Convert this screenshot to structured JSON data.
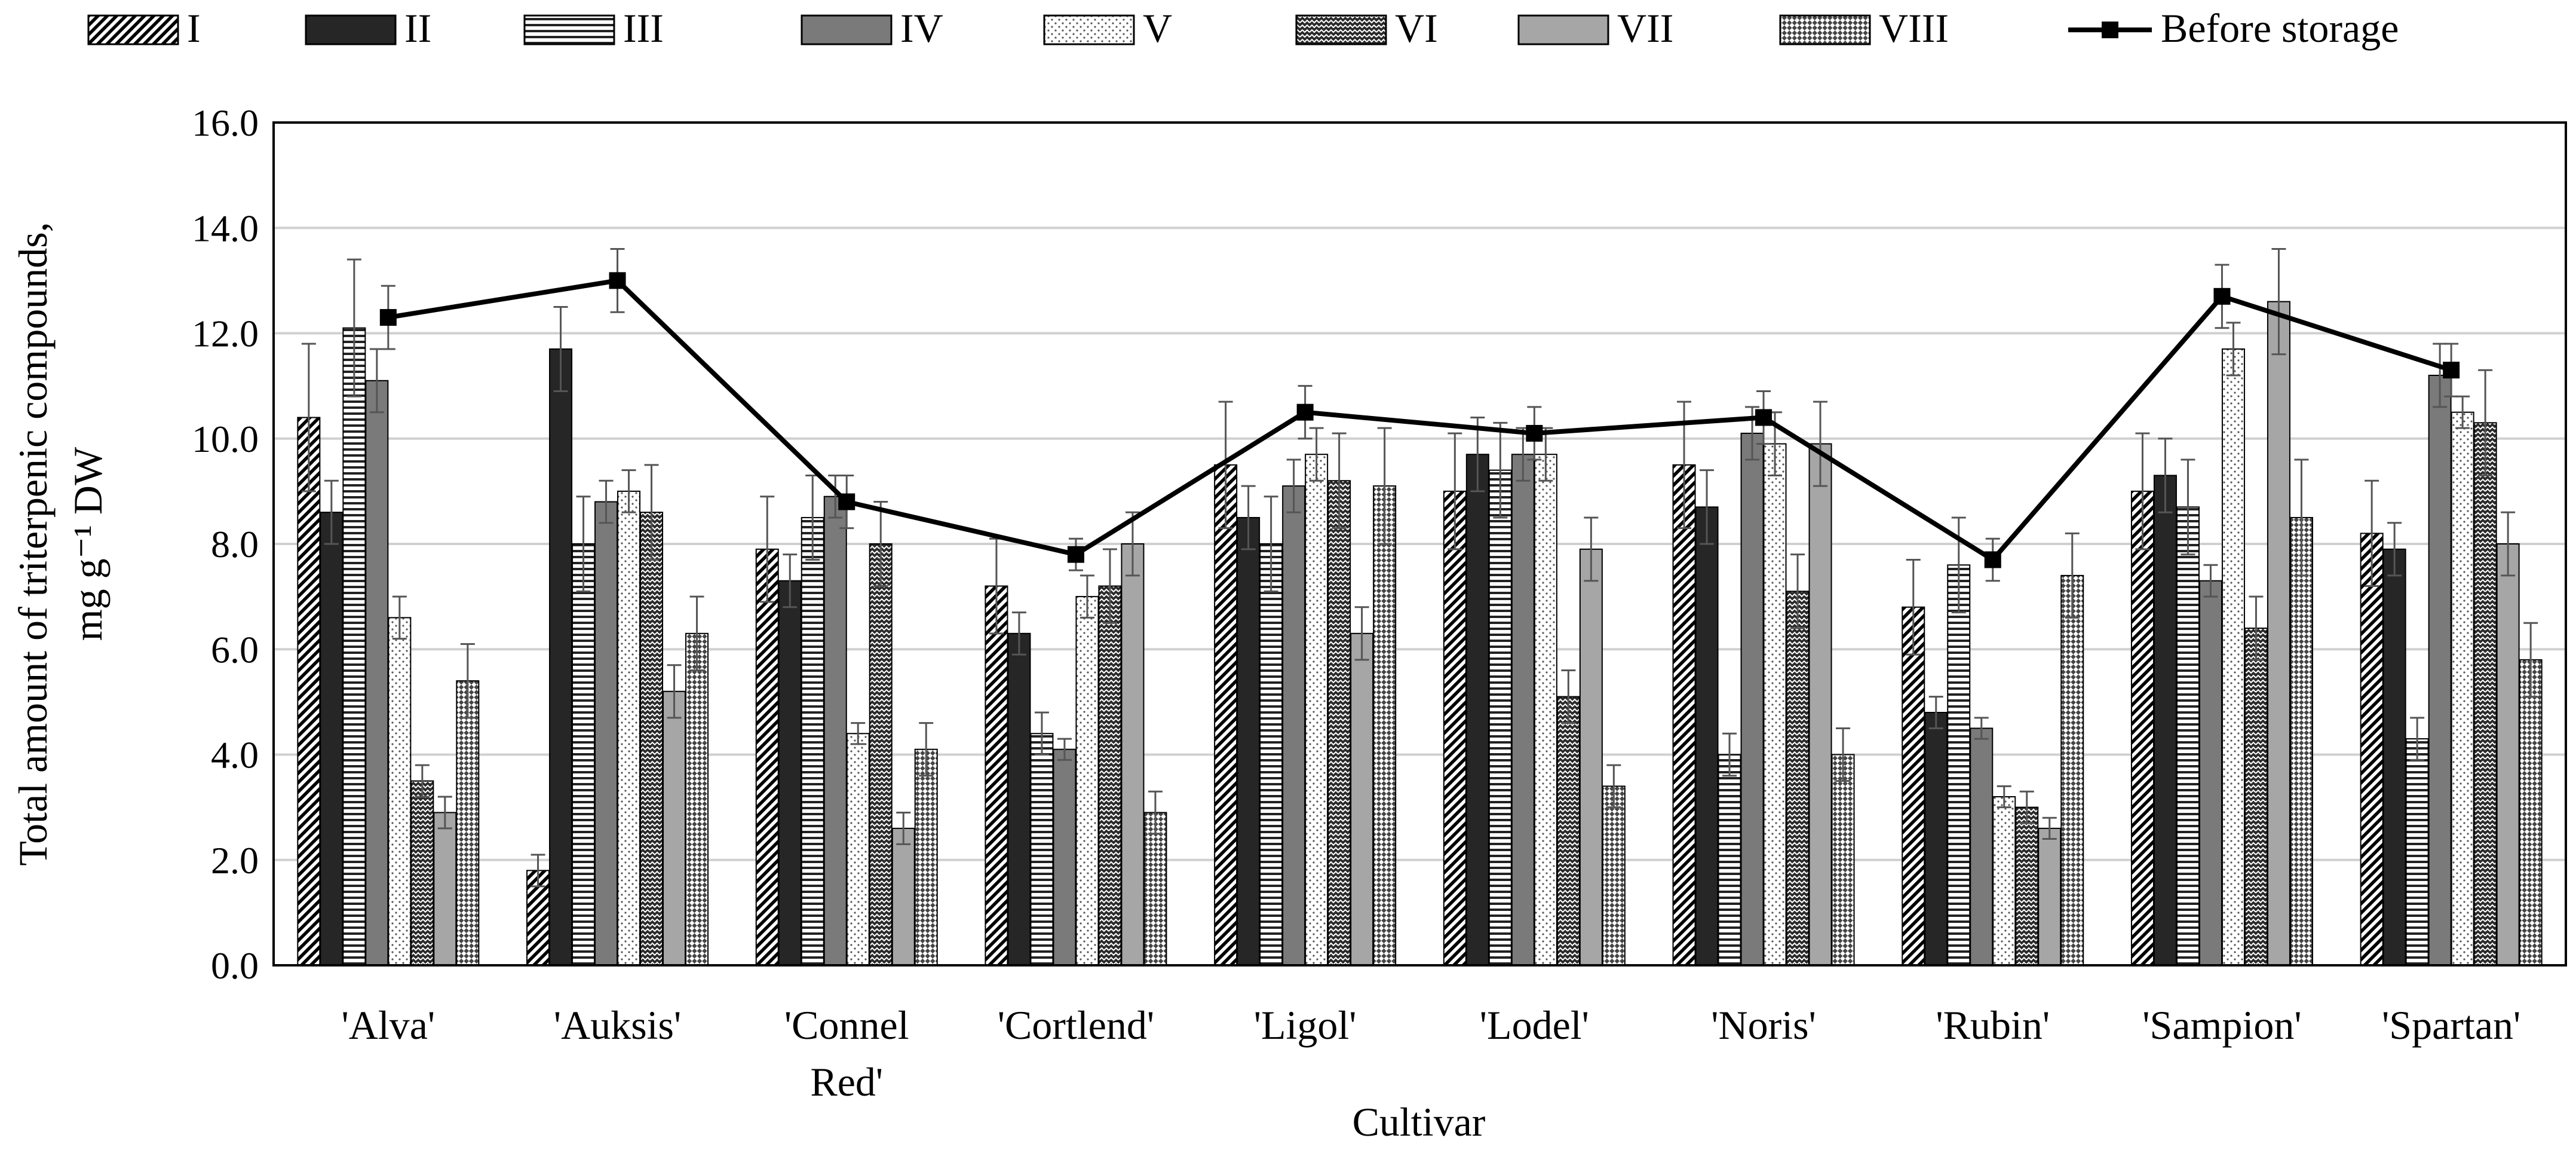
{
  "chart_data": {
    "type": "bar",
    "title": "",
    "xlabel": "Cultivar",
    "ylabel_line1": "Total amount of triterpenic compounds,",
    "ylabel_line2": "mg g⁻¹  DW",
    "ylim": [
      0,
      16
    ],
    "yticks": [
      "0.0",
      "2.0",
      "4.0",
      "6.0",
      "8.0",
      "10.0",
      "12.0",
      "14.0",
      "16.0"
    ],
    "categories": [
      [
        "'Alva'"
      ],
      [
        "'Auksis'"
      ],
      [
        "'Connel",
        "Red'"
      ],
      [
        "'Cortlend'"
      ],
      [
        "'Ligol'"
      ],
      [
        "'Lodel'"
      ],
      [
        "'Noris'"
      ],
      [
        "'Rubin'"
      ],
      [
        "'Sampion'"
      ],
      [
        "'Spartan'"
      ]
    ],
    "legend_position": "top",
    "series": [
      {
        "name": "I",
        "pattern": "diag-dense",
        "values": [
          10.4,
          1.8,
          7.9,
          7.2,
          9.5,
          9.0,
          9.5,
          6.8,
          9.0,
          8.2
        ],
        "errors": [
          1.4,
          0.3,
          1.0,
          0.9,
          1.2,
          1.1,
          1.2,
          0.9,
          1.1,
          1.0
        ]
      },
      {
        "name": "II",
        "pattern": "solid-dark",
        "values": [
          8.6,
          11.7,
          7.3,
          6.3,
          8.5,
          9.7,
          8.7,
          4.8,
          9.3,
          7.9
        ],
        "errors": [
          0.6,
          0.8,
          0.5,
          0.4,
          0.6,
          0.7,
          0.7,
          0.3,
          0.7,
          0.5
        ]
      },
      {
        "name": "III",
        "pattern": "horizontal",
        "values": [
          12.1,
          8.0,
          8.5,
          4.4,
          8.0,
          9.4,
          4.0,
          7.6,
          8.7,
          4.3
        ],
        "errors": [
          1.3,
          0.9,
          0.8,
          0.4,
          0.9,
          0.9,
          0.4,
          0.9,
          0.9,
          0.4
        ]
      },
      {
        "name": "IV",
        "pattern": "solid-mid",
        "values": [
          11.1,
          8.8,
          8.9,
          4.1,
          9.1,
          9.7,
          10.1,
          4.5,
          7.3,
          11.2
        ],
        "errors": [
          0.6,
          0.4,
          0.4,
          0.2,
          0.5,
          0.5,
          0.5,
          0.2,
          0.3,
          0.6
        ]
      },
      {
        "name": "V",
        "pattern": "dots",
        "values": [
          6.6,
          9.0,
          4.4,
          7.0,
          9.7,
          9.7,
          9.9,
          3.2,
          11.7,
          10.5
        ],
        "errors": [
          0.4,
          0.4,
          0.2,
          0.4,
          0.5,
          0.5,
          0.6,
          0.2,
          0.5,
          0.3
        ]
      },
      {
        "name": "VI",
        "pattern": "zigzag",
        "values": [
          3.5,
          8.6,
          8.0,
          7.2,
          9.2,
          5.1,
          7.1,
          3.0,
          6.4,
          10.3
        ],
        "errors": [
          0.3,
          0.9,
          0.8,
          0.7,
          0.9,
          0.5,
          0.7,
          0.3,
          0.6,
          1.0
        ]
      },
      {
        "name": "VII",
        "pattern": "solid-light",
        "values": [
          2.9,
          5.2,
          2.6,
          8.0,
          6.3,
          7.9,
          9.9,
          2.6,
          12.6,
          8.0
        ],
        "errors": [
          0.3,
          0.5,
          0.3,
          0.6,
          0.5,
          0.6,
          0.8,
          0.2,
          1.0,
          0.6
        ]
      },
      {
        "name": "VIII",
        "pattern": "checker",
        "values": [
          5.4,
          6.3,
          4.1,
          2.9,
          9.1,
          3.4,
          4.0,
          7.4,
          8.5,
          5.8
        ],
        "errors": [
          0.7,
          0.7,
          0.5,
          0.4,
          1.1,
          0.4,
          0.5,
          0.8,
          1.1,
          0.7
        ]
      }
    ],
    "line_series": {
      "name": "Before storage",
      "values": [
        12.3,
        13.0,
        8.8,
        7.8,
        10.5,
        10.1,
        10.4,
        7.7,
        12.7,
        11.3
      ],
      "errors": [
        0.6,
        0.6,
        0.5,
        0.3,
        0.5,
        0.5,
        0.5,
        0.4,
        0.6,
        0.5
      ]
    }
  }
}
